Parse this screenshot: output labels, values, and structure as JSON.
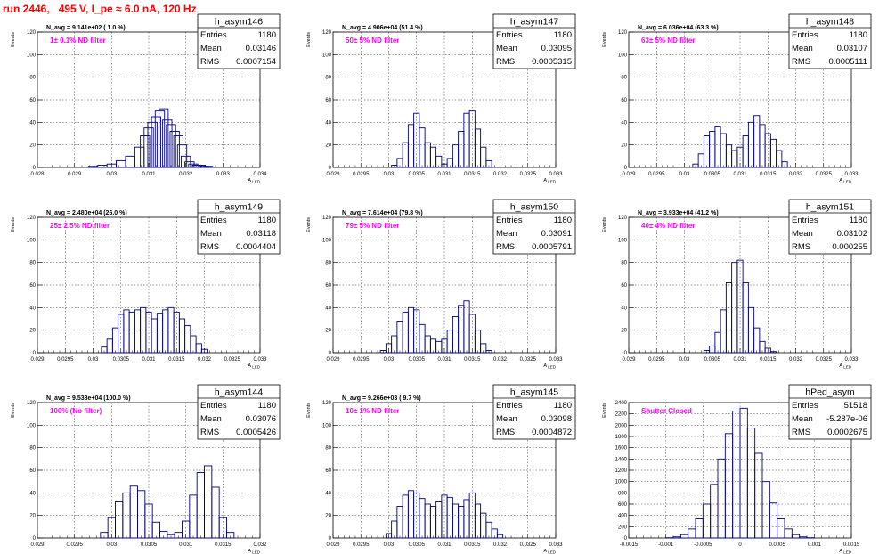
{
  "canvas": {
    "title": "run 2446,   495 V, I_pe ≈ 6.0 nA, 120 Hz"
  },
  "labels": {
    "ylabel": "Events",
    "xlabel": "A_LED"
  },
  "colors": {
    "title": "#ff0000",
    "annotation": "#ff00ff",
    "histogram": "#000080",
    "frame": "#000000",
    "grid": "#000000"
  },
  "chart_data": [
    {
      "type": "bar",
      "name": "h_asym146",
      "n_avg": "N_avg = 9.141e+02 ( 1.0 %)",
      "filter": "1± 0.1% ND filter",
      "stats": {
        "Entries": "1180",
        "Mean": "0.03146",
        "RMS": "0.0007154"
      },
      "xlim": [
        0.028,
        0.034
      ],
      "ylim": [
        0,
        120
      ],
      "xticks": [
        "0.028",
        "0.029",
        "0.03",
        "0.031",
        "0.032",
        "0.033",
        "0.034"
      ],
      "yticks": [
        "0",
        "20",
        "40",
        "60",
        "80",
        "100",
        "120"
      ],
      "bins": [
        0.0295,
        0.02975,
        0.03,
        0.03025,
        0.0305,
        0.03075,
        0.0309,
        0.031,
        0.0311,
        0.0312,
        0.0313,
        0.0314,
        0.0315,
        0.0316,
        0.0317,
        0.0318,
        0.0319,
        0.032,
        0.0321,
        0.0322,
        0.0323,
        0.0324,
        0.0325,
        0.0326
      ],
      "values": [
        1,
        2,
        3,
        6,
        10,
        18,
        28,
        35,
        40,
        45,
        50,
        52,
        42,
        38,
        32,
        28,
        20,
        10,
        5,
        3,
        2,
        2,
        1,
        1
      ]
    },
    {
      "type": "bar",
      "name": "h_asym147",
      "n_avg": "N_avg = 4.906e+04 (51.4 %)",
      "filter": "50± 5% ND filter",
      "stats": {
        "Entries": "1180",
        "Mean": "0.03095",
        "RMS": "0.0005315"
      },
      "xlim": [
        0.029,
        0.033
      ],
      "ylim": [
        0,
        120
      ],
      "xticks": [
        "0.029",
        "0.0295",
        "0.03",
        "0.0305",
        "0.031",
        "0.0315",
        "0.032",
        "0.0325",
        "0.033"
      ],
      "yticks": [
        "0",
        "20",
        "40",
        "60",
        "80",
        "100",
        "120"
      ],
      "bins": [
        0.0301,
        0.0302,
        0.0303,
        0.0304,
        0.0305,
        0.0306,
        0.0307,
        0.0308,
        0.0309,
        0.031,
        0.0311,
        0.0312,
        0.0313,
        0.0314,
        0.0315,
        0.0316,
        0.0317,
        0.0318
      ],
      "values": [
        2,
        8,
        22,
        38,
        48,
        35,
        22,
        18,
        10,
        3,
        8,
        20,
        32,
        48,
        50,
        34,
        18,
        6
      ]
    },
    {
      "type": "bar",
      "name": "h_asym148",
      "n_avg": "N_avg = 6.036e+04 (63.3 %)",
      "filter": "63± 5% ND filter",
      "stats": {
        "Entries": "1180",
        "Mean": "0.03107",
        "RMS": "0.0005111"
      },
      "xlim": [
        0.029,
        0.033
      ],
      "ylim": [
        0,
        120
      ],
      "xticks": [
        "0.029",
        "0.0295",
        "0.03",
        "0.0305",
        "0.031",
        "0.0315",
        "0.032",
        "0.0325",
        "0.033"
      ],
      "yticks": [
        "0",
        "20",
        "40",
        "60",
        "80",
        "100",
        "120"
      ],
      "bins": [
        0.0302,
        0.0303,
        0.0304,
        0.0305,
        0.0306,
        0.0307,
        0.0308,
        0.0309,
        0.031,
        0.0311,
        0.0312,
        0.0313,
        0.0314,
        0.0315,
        0.0316,
        0.0317,
        0.0318
      ],
      "values": [
        3,
        12,
        28,
        32,
        36,
        30,
        20,
        15,
        18,
        28,
        40,
        46,
        38,
        30,
        25,
        15,
        5
      ]
    },
    {
      "type": "bar",
      "name": "h_asym149",
      "n_avg": "N_avg = 2.480e+04 (26.0 %)",
      "filter": "25± 2.5% ND filter",
      "stats": {
        "Entries": "1180",
        "Mean": "0.03118",
        "RMS": "0.0004404"
      },
      "xlim": [
        0.029,
        0.033
      ],
      "ylim": [
        0,
        120
      ],
      "xticks": [
        "0.029",
        "0.0295",
        "0.03",
        "0.0305",
        "0.031",
        "0.0315",
        "0.032",
        "0.0325",
        "0.033"
      ],
      "yticks": [
        "0",
        "20",
        "40",
        "60",
        "80",
        "100",
        "120"
      ],
      "bins": [
        0.0302,
        0.0303,
        0.0304,
        0.0305,
        0.0306,
        0.0307,
        0.0308,
        0.0309,
        0.031,
        0.0311,
        0.0312,
        0.0313,
        0.0314,
        0.0315,
        0.0316,
        0.0317,
        0.0318,
        0.0319,
        0.032
      ],
      "values": [
        5,
        12,
        22,
        34,
        38,
        36,
        38,
        40,
        36,
        30,
        35,
        38,
        40,
        36,
        30,
        24,
        15,
        8,
        3
      ]
    },
    {
      "type": "bar",
      "name": "h_asym150",
      "n_avg": "N_avg = 7.614e+04 (79.8 %)",
      "filter": "79± 5% ND filter",
      "stats": {
        "Entries": "1180",
        "Mean": "0.03091",
        "RMS": "0.0005791"
      },
      "xlim": [
        0.029,
        0.033
      ],
      "ylim": [
        0,
        120
      ],
      "xticks": [
        "0.029",
        "0.0295",
        "0.03",
        "0.0305",
        "0.031",
        "0.0315",
        "0.032",
        "0.0325",
        "0.033"
      ],
      "yticks": [
        "0",
        "20",
        "40",
        "60",
        "80",
        "100",
        "120"
      ],
      "bins": [
        0.0299,
        0.03,
        0.0301,
        0.0302,
        0.0303,
        0.0304,
        0.0305,
        0.0306,
        0.0307,
        0.0308,
        0.0309,
        0.031,
        0.0311,
        0.0312,
        0.0313,
        0.0314,
        0.0315,
        0.0316,
        0.0317,
        0.0318
      ],
      "values": [
        2,
        8,
        15,
        28,
        36,
        40,
        38,
        25,
        15,
        12,
        10,
        12,
        20,
        32,
        42,
        46,
        34,
        20,
        8,
        2
      ]
    },
    {
      "type": "bar",
      "name": "h_asym151",
      "n_avg": "N_avg = 3.933e+04 (41.2 %)",
      "filter": "40± 4% ND filter",
      "stats": {
        "Entries": "1180",
        "Mean": "0.03102",
        "RMS": "0.000255"
      },
      "xlim": [
        0.029,
        0.033
      ],
      "ylim": [
        0,
        120
      ],
      "xticks": [
        "0.029",
        "0.0295",
        "0.03",
        "0.0305",
        "0.031",
        "0.0315",
        "0.032",
        "0.0325",
        "0.033"
      ],
      "yticks": [
        "0",
        "20",
        "40",
        "60",
        "80",
        "100",
        "120"
      ],
      "bins": [
        0.0304,
        0.0305,
        0.0306,
        0.0307,
        0.0308,
        0.0309,
        0.031,
        0.0311,
        0.0312,
        0.0313,
        0.0314,
        0.0315,
        0.0316
      ],
      "values": [
        2,
        6,
        18,
        38,
        62,
        80,
        82,
        62,
        40,
        22,
        10,
        4,
        1
      ]
    },
    {
      "type": "bar",
      "name": "h_asym144",
      "n_avg": "N_avg = 9.538e+04 (100.0 %)",
      "filter": "100% (No filter)",
      "stats": {
        "Entries": "1180",
        "Mean": "0.03076",
        "RMS": "0.0005426"
      },
      "xlim": [
        0.029,
        0.032
      ],
      "ylim": [
        0,
        120
      ],
      "xticks": [
        "0.029",
        "0.0295",
        "0.03",
        "0.0305",
        "0.031",
        "0.0315",
        "0.032"
      ],
      "yticks": [
        "0",
        "20",
        "40",
        "60",
        "80",
        "100",
        "120"
      ],
      "bins": [
        0.0299,
        0.03,
        0.0301,
        0.0302,
        0.0303,
        0.0304,
        0.0305,
        0.0306,
        0.0307,
        0.0308,
        0.0309,
        0.031,
        0.0311,
        0.0312,
        0.0313,
        0.0314,
        0.0315,
        0.0316
      ],
      "values": [
        5,
        18,
        32,
        40,
        46,
        42,
        30,
        14,
        6,
        3,
        5,
        15,
        38,
        58,
        64,
        45,
        18,
        5
      ]
    },
    {
      "type": "bar",
      "name": "h_asym145",
      "n_avg": "N_avg = 9.266e+03 ( 9.7 %)",
      "filter": "10± 1% ND filter",
      "stats": {
        "Entries": "1180",
        "Mean": "0.03098",
        "RMS": "0.0004872"
      },
      "xlim": [
        0.029,
        0.033
      ],
      "ylim": [
        0,
        120
      ],
      "xticks": [
        "0.029",
        "0.0295",
        "0.03",
        "0.0305",
        "0.031",
        "0.0315",
        "0.032",
        "0.0325",
        "0.033"
      ],
      "yticks": [
        "0",
        "20",
        "40",
        "60",
        "80",
        "100",
        "120"
      ],
      "bins": [
        0.03,
        0.0301,
        0.0302,
        0.0303,
        0.0304,
        0.0305,
        0.0306,
        0.0307,
        0.0308,
        0.0309,
        0.031,
        0.0311,
        0.0312,
        0.0313,
        0.0314,
        0.0315,
        0.0316,
        0.0317,
        0.0318,
        0.0319,
        0.032
      ],
      "values": [
        4,
        15,
        28,
        38,
        42,
        40,
        35,
        30,
        28,
        32,
        38,
        36,
        30,
        28,
        34,
        40,
        30,
        22,
        14,
        8,
        3
      ]
    },
    {
      "type": "bar",
      "name": "hPed_asym",
      "n_avg": "",
      "filter": "Shutter Closed",
      "stats": {
        "Entries": "51518",
        "Mean": "-5.287e-06",
        "RMS": "0.0002675"
      },
      "xlim": [
        -0.0015,
        0.0015
      ],
      "ylim": [
        0,
        2400
      ],
      "xticks": [
        "-0.0015",
        "-0.001",
        "-0.0005",
        "0",
        "0.0005",
        "0.001",
        "0.0015"
      ],
      "yticks": [
        "0",
        "200",
        "400",
        "600",
        "800",
        "1000",
        "1200",
        "1400",
        "1600",
        "1800",
        "2000",
        "2200",
        "2400"
      ],
      "bins": [
        -0.00095,
        -0.00085,
        -0.00075,
        -0.00065,
        -0.00055,
        -0.00045,
        -0.00035,
        -0.00025,
        -0.00015,
        -5e-05,
        5e-05,
        0.00015,
        0.00025,
        0.00035,
        0.00045,
        0.00055,
        0.00065,
        0.00075,
        0.00085,
        0.00095
      ],
      "values": [
        5,
        20,
        60,
        160,
        340,
        600,
        950,
        1400,
        1850,
        2250,
        2300,
        1950,
        1500,
        1000,
        620,
        340,
        160,
        60,
        20,
        5
      ]
    }
  ]
}
